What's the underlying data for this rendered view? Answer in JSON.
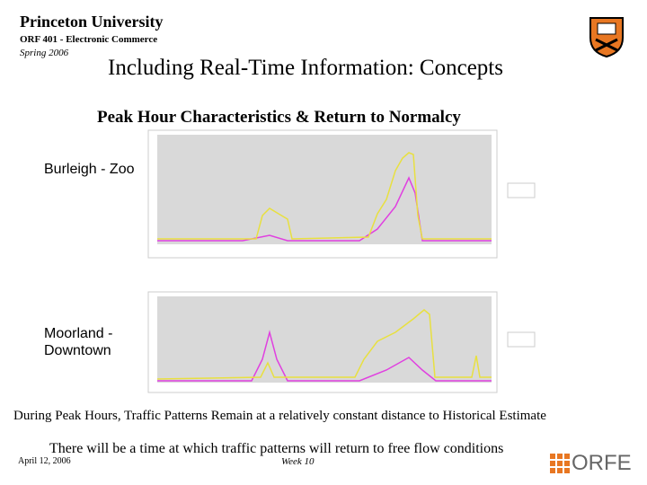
{
  "header": {
    "brand": "Princeton University",
    "course": "ORF 401 - Electronic Commerce",
    "term": "Spring 2006"
  },
  "title": "Including Real-Time Information: Concepts",
  "subtitle": "Peak Hour Characteristics & Return to Normalcy",
  "figures": [
    {
      "label": "Burleigh - Zoo"
    },
    {
      "label": "Moorland - Downtown"
    }
  ],
  "body": [
    "During Peak Hours, Traffic Patterns Remain at a relatively constant distance to Historical Estimate",
    "There will be a time at which traffic patterns will return to free flow conditions"
  ],
  "footer": {
    "date": "April 12, 2006",
    "week": "Week 10",
    "logo": "ORFE"
  }
}
